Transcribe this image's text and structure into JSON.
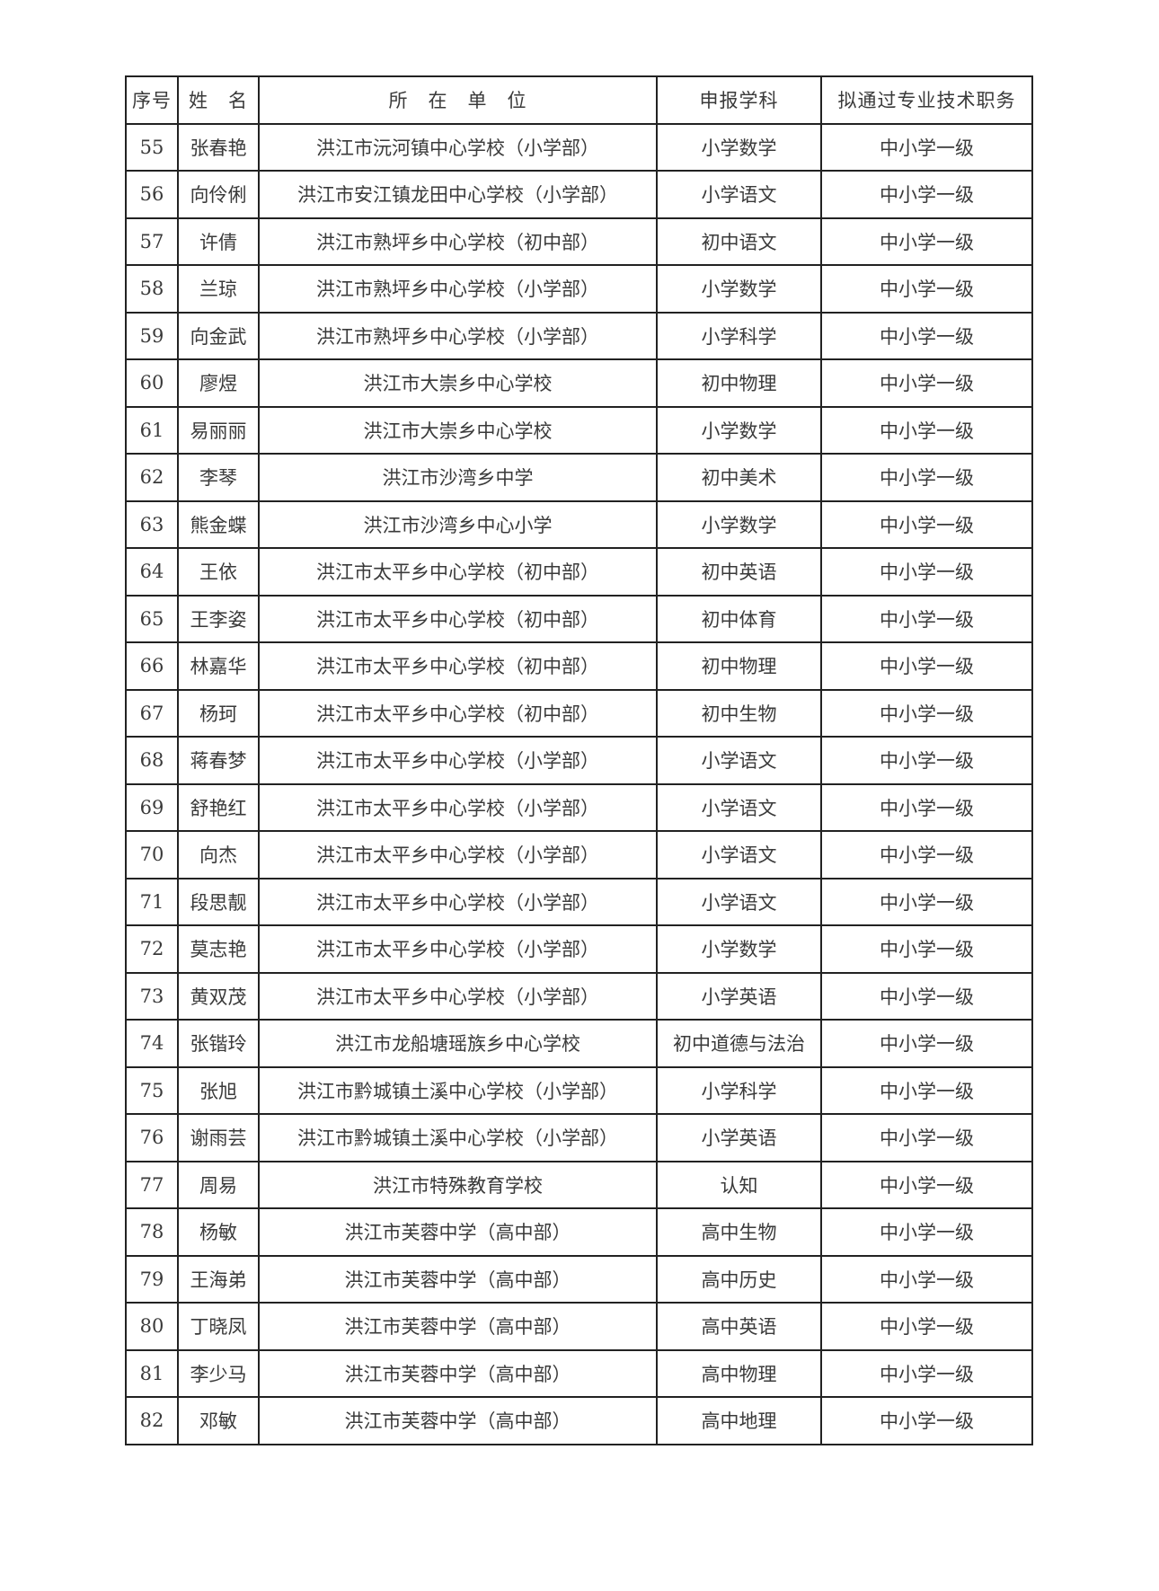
{
  "table": {
    "headers": [
      "序号",
      "姓　名",
      "所　在　单　位",
      "申报学科",
      "拟通过专业技术职务"
    ],
    "rows": [
      [
        "55",
        "张春艳",
        "洪江市沅河镇中心学校（小学部）",
        "小学数学",
        "中小学一级"
      ],
      [
        "56",
        "向伶俐",
        "洪江市安江镇龙田中心学校（小学部）",
        "小学语文",
        "中小学一级"
      ],
      [
        "57",
        "许倩",
        "洪江市熟坪乡中心学校（初中部）",
        "初中语文",
        "中小学一级"
      ],
      [
        "58",
        "兰琼",
        "洪江市熟坪乡中心学校（小学部）",
        "小学数学",
        "中小学一级"
      ],
      [
        "59",
        "向金武",
        "洪江市熟坪乡中心学校（小学部）",
        "小学科学",
        "中小学一级"
      ],
      [
        "60",
        "廖煜",
        "洪江市大崇乡中心学校",
        "初中物理",
        "中小学一级"
      ],
      [
        "61",
        "易丽丽",
        "洪江市大崇乡中心学校",
        "小学数学",
        "中小学一级"
      ],
      [
        "62",
        "李琴",
        "洪江市沙湾乡中学",
        "初中美术",
        "中小学一级"
      ],
      [
        "63",
        "熊金蝶",
        "洪江市沙湾乡中心小学",
        "小学数学",
        "中小学一级"
      ],
      [
        "64",
        "王依",
        "洪江市太平乡中心学校（初中部）",
        "初中英语",
        "中小学一级"
      ],
      [
        "65",
        "王李姿",
        "洪江市太平乡中心学校（初中部）",
        "初中体育",
        "中小学一级"
      ],
      [
        "66",
        "林嘉华",
        "洪江市太平乡中心学校（初中部）",
        "初中物理",
        "中小学一级"
      ],
      [
        "67",
        "杨珂",
        "洪江市太平乡中心学校（初中部）",
        "初中生物",
        "中小学一级"
      ],
      [
        "68",
        "蒋春梦",
        "洪江市太平乡中心学校（小学部）",
        "小学语文",
        "中小学一级"
      ],
      [
        "69",
        "舒艳红",
        "洪江市太平乡中心学校（小学部）",
        "小学语文",
        "中小学一级"
      ],
      [
        "70",
        "向杰",
        "洪江市太平乡中心学校（小学部）",
        "小学语文",
        "中小学一级"
      ],
      [
        "71",
        "段思靓",
        "洪江市太平乡中心学校（小学部）",
        "小学语文",
        "中小学一级"
      ],
      [
        "72",
        "莫志艳",
        "洪江市太平乡中心学校（小学部）",
        "小学数学",
        "中小学一级"
      ],
      [
        "73",
        "黄双茂",
        "洪江市太平乡中心学校（小学部）",
        "小学英语",
        "中小学一级"
      ],
      [
        "74",
        "张锴玲",
        "洪江市龙船塘瑶族乡中心学校",
        "初中道德与法治",
        "中小学一级"
      ],
      [
        "75",
        "张旭",
        "洪江市黔城镇土溪中心学校（小学部）",
        "小学科学",
        "中小学一级"
      ],
      [
        "76",
        "谢雨芸",
        "洪江市黔城镇土溪中心学校（小学部）",
        "小学英语",
        "中小学一级"
      ],
      [
        "77",
        "周易",
        "洪江市特殊教育学校",
        "认知",
        "中小学一级"
      ],
      [
        "78",
        "杨敏",
        "洪江市芙蓉中学（高中部）",
        "高中生物",
        "中小学一级"
      ],
      [
        "79",
        "王海弟",
        "洪江市芙蓉中学（高中部）",
        "高中历史",
        "中小学一级"
      ],
      [
        "80",
        "丁晓凤",
        "洪江市芙蓉中学（高中部）",
        "高中英语",
        "中小学一级"
      ],
      [
        "81",
        "李少马",
        "洪江市芙蓉中学（高中部）",
        "高中物理",
        "中小学一级"
      ],
      [
        "82",
        "邓敏",
        "洪江市芙蓉中学（高中部）",
        "高中地理",
        "中小学一级"
      ]
    ]
  }
}
